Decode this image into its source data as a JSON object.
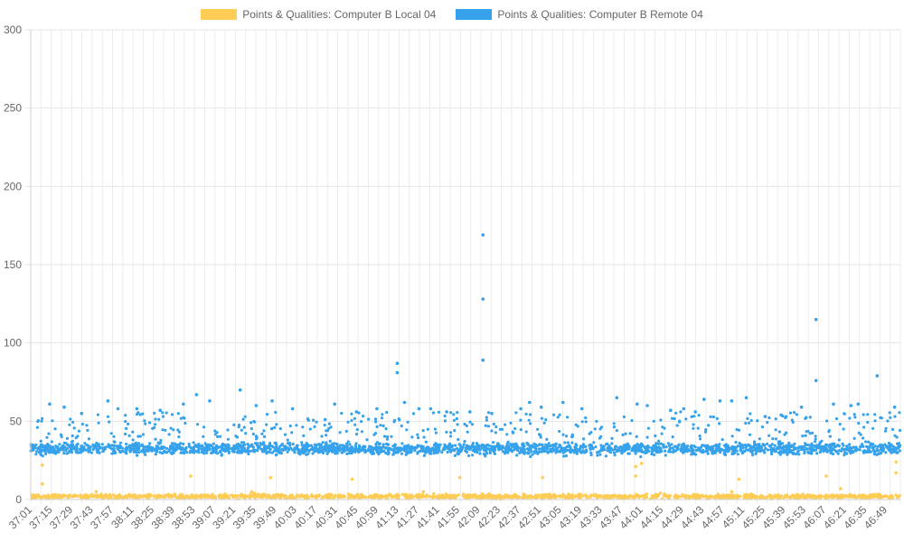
{
  "chart_data": {
    "type": "scatter",
    "ylim": [
      0,
      300
    ],
    "y_ticks": [
      0,
      50,
      100,
      150,
      200,
      250,
      300
    ],
    "x_tick_labels": [
      "37:01",
      "37:15",
      "37:29",
      "37:43",
      "37:57",
      "38:11",
      "38:25",
      "38:39",
      "38:53",
      "39:07",
      "39:21",
      "39:35",
      "39:49",
      "40:03",
      "40:17",
      "40:31",
      "40:45",
      "40:59",
      "41:13",
      "41:27",
      "41:41",
      "41:55",
      "42:09",
      "42:23",
      "42:37",
      "42:51",
      "43:05",
      "43:19",
      "43:33",
      "43:47",
      "44:01",
      "44:15",
      "44:29",
      "44:43",
      "44:57",
      "45:11",
      "45:25",
      "45:39",
      "45:53",
      "46:07",
      "46:21",
      "46:35",
      "46:49"
    ],
    "x_range": [
      "37:01",
      "46:59"
    ],
    "grid": true,
    "legend_position": "top",
    "series": [
      {
        "name": "Points & Qualities: Computer B Local 04",
        "color": "#ffcd56",
        "baseline": [
          0,
          4
        ],
        "values": [
          [
            "37:09",
            10
          ],
          [
            "37:09",
            22
          ],
          [
            "37:39",
            3
          ],
          [
            "37:46",
            5
          ],
          [
            "38:23",
            3
          ],
          [
            "38:51",
            15
          ],
          [
            "39:33",
            5
          ],
          [
            "39:35",
            4
          ],
          [
            "39:46",
            14
          ],
          [
            "40:42",
            13
          ],
          [
            "41:31",
            5
          ],
          [
            "41:56",
            14
          ],
          [
            "42:53",
            14
          ],
          [
            "43:57",
            15
          ],
          [
            "43:57",
            21
          ],
          [
            "44:01",
            23
          ],
          [
            "44:14",
            4
          ],
          [
            "45:03",
            5
          ],
          [
            "45:08",
            13
          ],
          [
            "46:08",
            15
          ],
          [
            "46:18",
            7
          ],
          [
            "46:56",
            17
          ],
          [
            "46:56",
            24
          ]
        ]
      },
      {
        "name": "Points & Qualities: Computer B Remote 04",
        "color": "#36a2eb",
        "baseline": [
          27,
          38
        ],
        "values": [
          [
            "41:13",
            87
          ],
          [
            "41:13",
            81
          ],
          [
            "42:12",
            169
          ],
          [
            "42:12",
            128
          ],
          [
            "42:12",
            89
          ],
          [
            "46:01",
            115
          ],
          [
            "46:01",
            76
          ],
          [
            "46:43",
            79
          ],
          [
            "39:25",
            70
          ],
          [
            "38:55",
            67
          ],
          [
            "37:54",
            63
          ],
          [
            "39:04",
            63
          ],
          [
            "39:47",
            63
          ],
          [
            "41:18",
            62
          ],
          [
            "42:44",
            62
          ],
          [
            "43:44",
            65
          ],
          [
            "44:44",
            64
          ],
          [
            "45:13",
            65
          ],
          [
            "45:03",
            63
          ],
          [
            "44:55",
            63
          ],
          [
            "46:13",
            61
          ],
          [
            "46:30",
            61
          ],
          [
            "37:14",
            61
          ],
          [
            "37:24",
            59
          ],
          [
            "37:36",
            55
          ],
          [
            "38:01",
            58
          ],
          [
            "38:14",
            58
          ],
          [
            "38:30",
            57
          ],
          [
            "38:46",
            61
          ],
          [
            "39:36",
            60
          ],
          [
            "40:01",
            58
          ],
          [
            "40:30",
            61
          ],
          [
            "40:45",
            56
          ],
          [
            "40:59",
            58
          ],
          [
            "41:28",
            58
          ],
          [
            "41:36",
            58
          ],
          [
            "41:47",
            56
          ],
          [
            "42:03",
            56
          ],
          [
            "42:18",
            55
          ],
          [
            "42:38",
            58
          ],
          [
            "42:52",
            59
          ],
          [
            "43:07",
            62
          ],
          [
            "43:20",
            58
          ],
          [
            "43:58",
            61
          ],
          [
            "44:05",
            60
          ],
          [
            "44:21",
            57
          ],
          [
            "44:30",
            58
          ],
          [
            "44:38",
            56
          ],
          [
            "45:26",
            53
          ],
          [
            "45:37",
            54
          ],
          [
            "45:51",
            59
          ],
          [
            "46:25",
            60
          ],
          [
            "46:55",
            59
          ]
        ]
      }
    ]
  }
}
